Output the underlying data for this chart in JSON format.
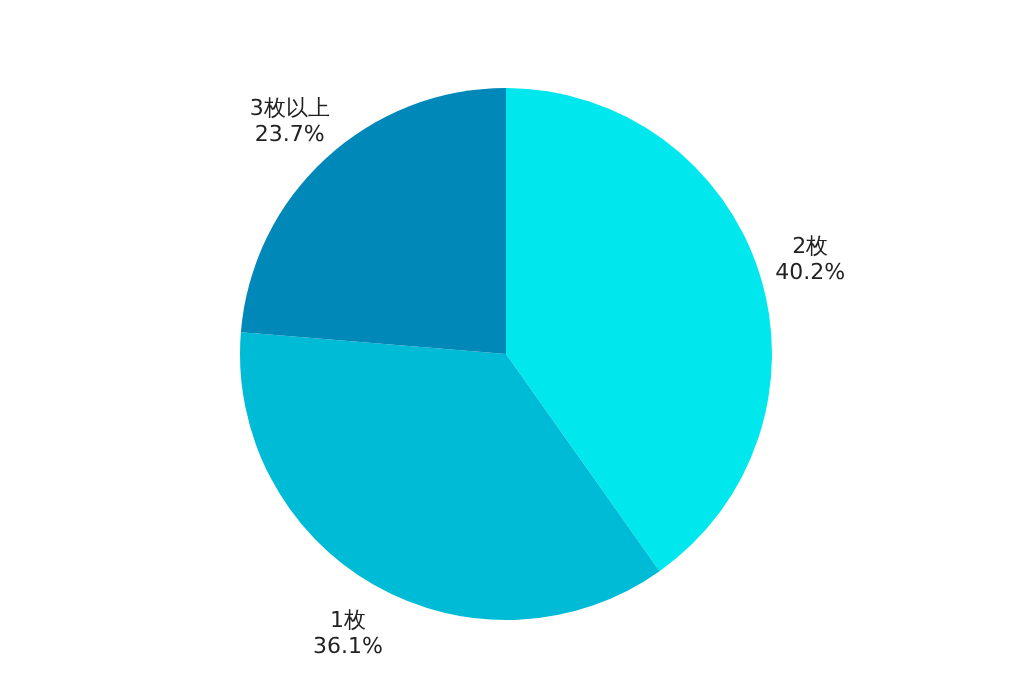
{
  "chart_data": {
    "type": "pie",
    "categories": [
      "2枚",
      "1枚",
      "3枚以上"
    ],
    "values": [
      40.2,
      36.1,
      23.7
    ],
    "colors": [
      "#00e8ee",
      "#00bbd6",
      "#0088b8"
    ],
    "value_labels": [
      "40.2%",
      "36.1%",
      "23.7%"
    ]
  }
}
